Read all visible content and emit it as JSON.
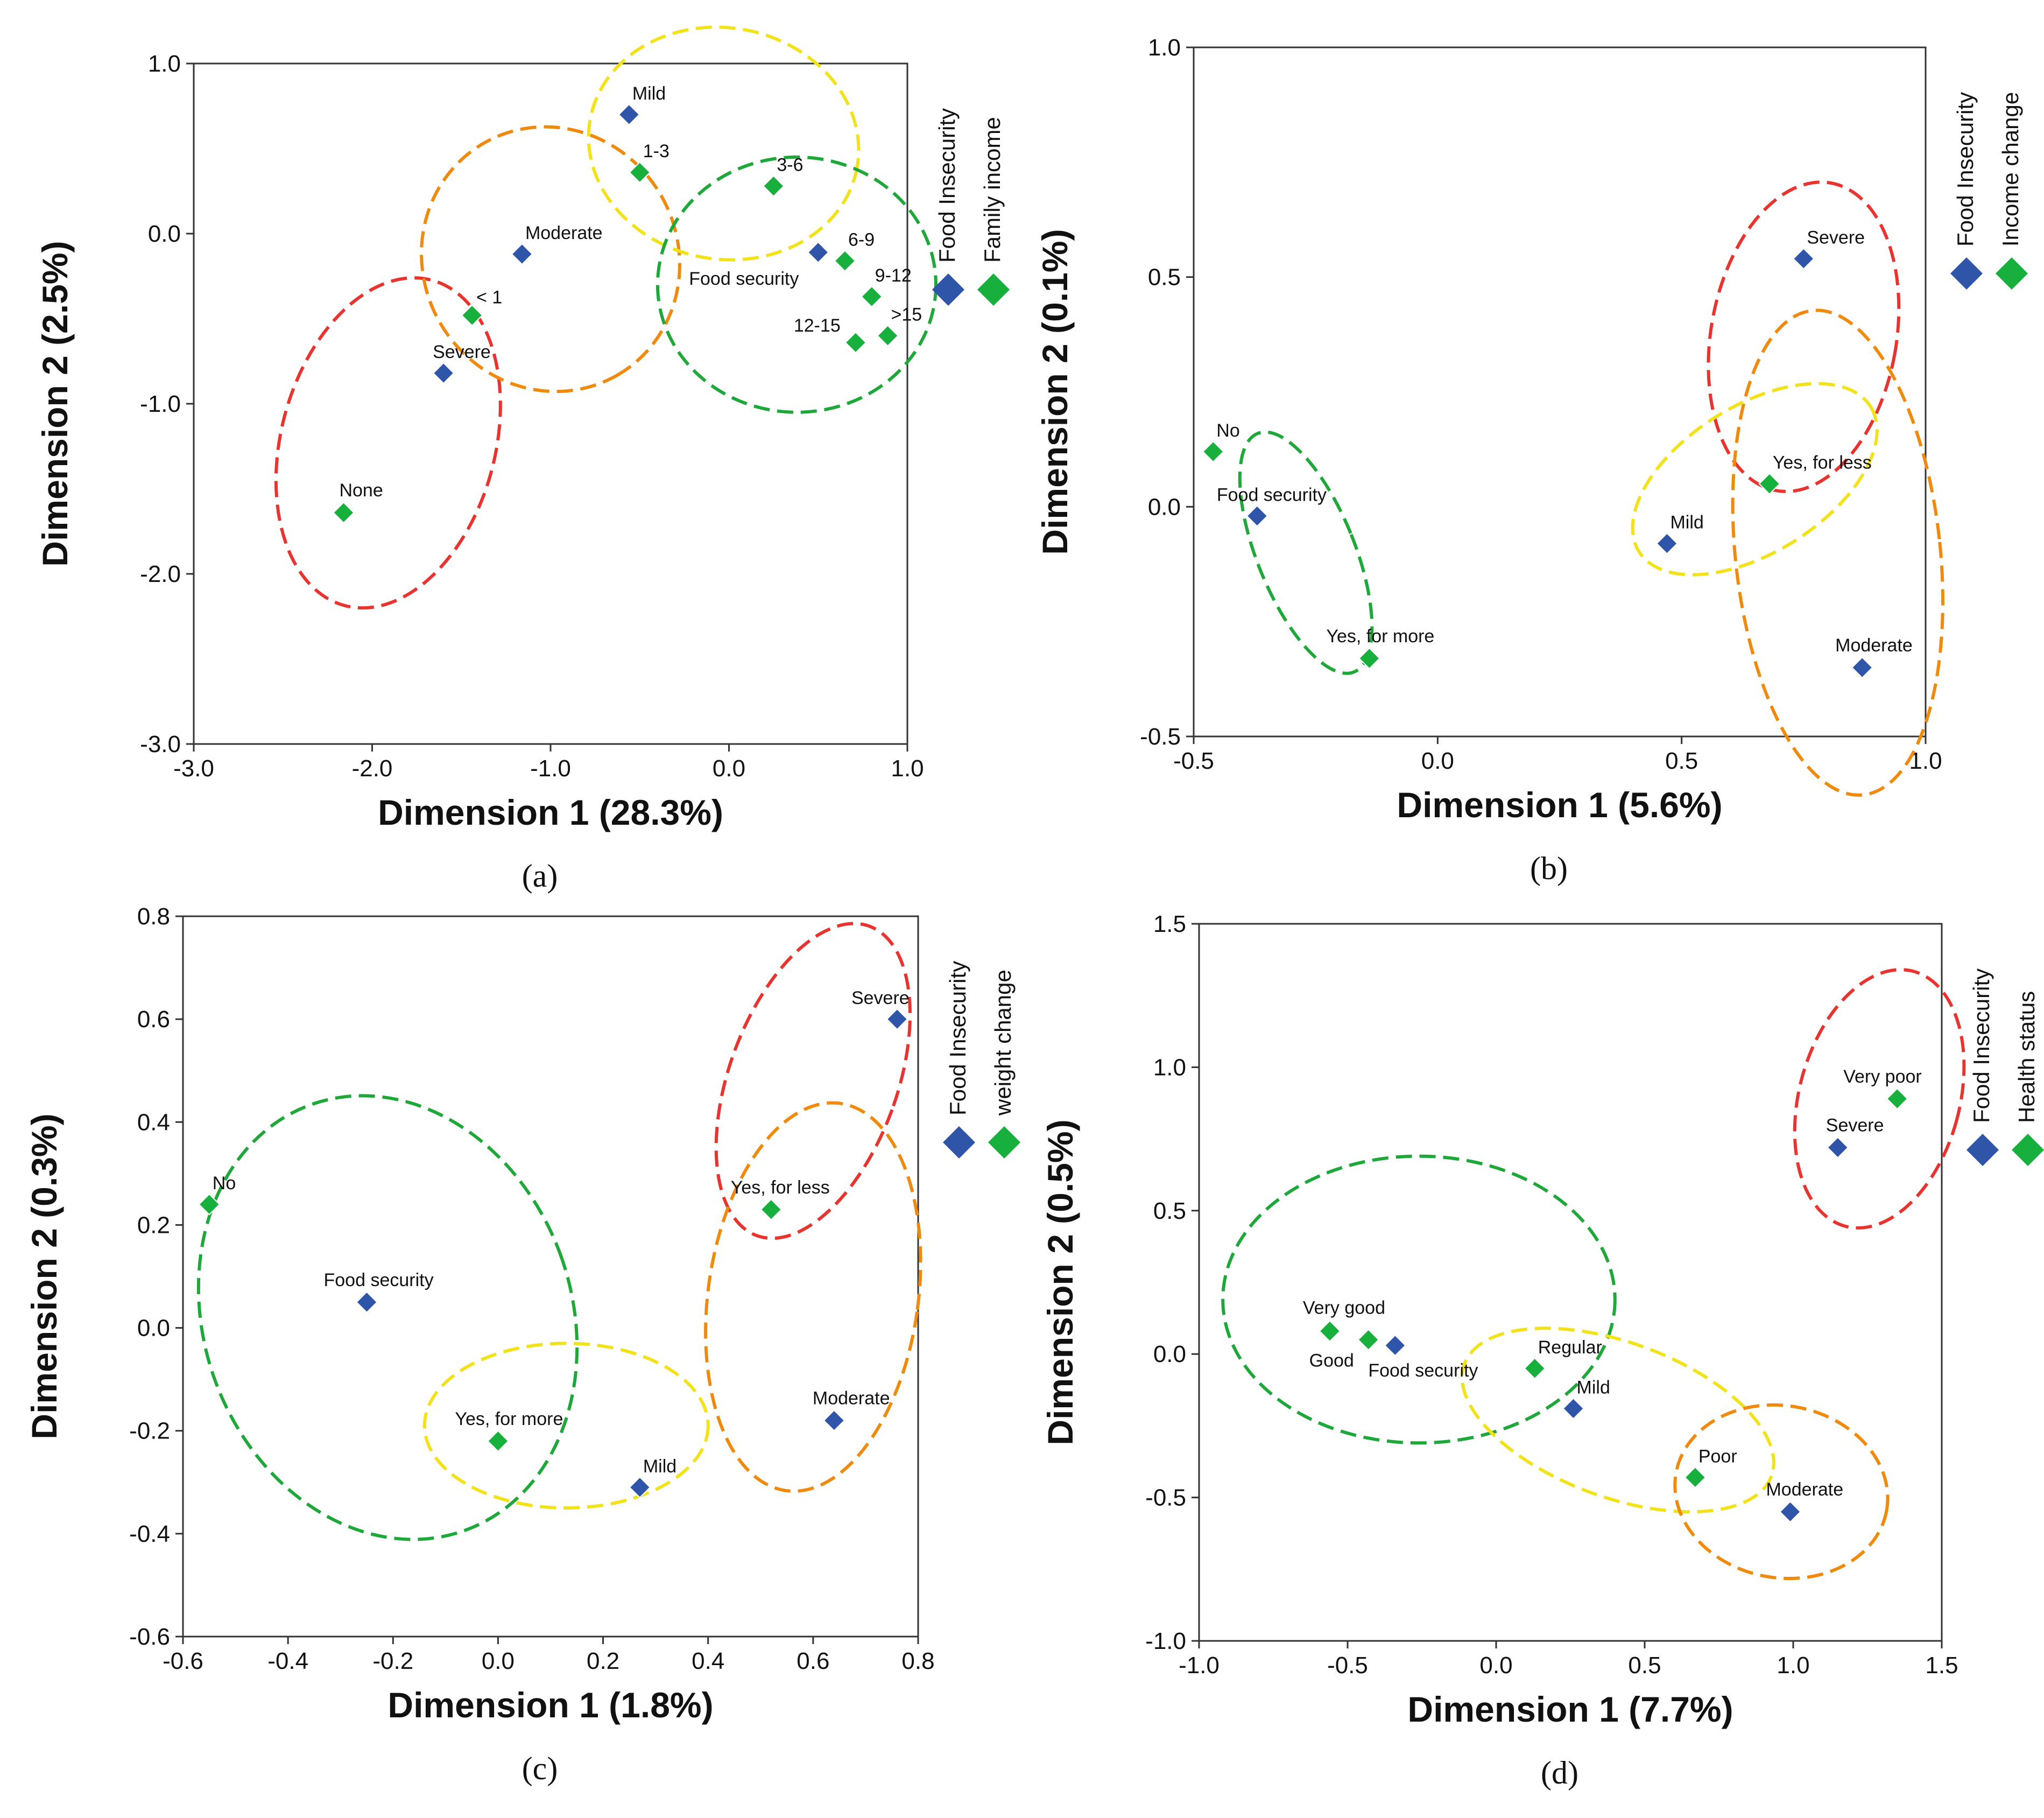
{
  "colors": {
    "food_insecurity": "#2f55a8",
    "other_variable": "#17b03c",
    "red": "#e8332f",
    "orange": "#f08a0c",
    "yellow": "#f2e21a",
    "green": "#1fa83a"
  },
  "chart_data": [
    {
      "type": "scatter",
      "panel": "(a)",
      "xlabel": "Dimension  1 (28.3%)",
      "ylabel": "Dimension  2 (2.5%)",
      "xlim": [
        -3.0,
        1.0
      ],
      "ylim": [
        -3.0,
        1.0
      ],
      "xticks": [
        "-3.0",
        "-2.0",
        "-1.0",
        "0.0",
        "1.0"
      ],
      "yticks": [
        "-3.0",
        "-2.0",
        "-1.0",
        "0.0",
        "1.0"
      ],
      "legend": [
        "Food Insecurity",
        "Family income"
      ],
      "points": [
        {
          "label": "Mild",
          "series": "food_insecurity",
          "x": -0.56,
          "y": 0.7
        },
        {
          "label": "Moderate",
          "series": "food_insecurity",
          "x": -1.16,
          "y": -0.12
        },
        {
          "label": "Severe",
          "series": "food_insecurity",
          "x": -1.6,
          "y": -0.82
        },
        {
          "label": "Food security",
          "series": "food_insecurity",
          "x": 0.5,
          "y": -0.11
        },
        {
          "label": "1-3",
          "series": "other_variable",
          "x": -0.5,
          "y": 0.36
        },
        {
          "label": "3-6",
          "series": "other_variable",
          "x": 0.25,
          "y": 0.28
        },
        {
          "label": "6-9",
          "series": "other_variable",
          "x": 0.65,
          "y": -0.16
        },
        {
          "label": "9-12",
          "series": "other_variable",
          "x": 0.8,
          "y": -0.37
        },
        {
          "label": ">15",
          "series": "other_variable",
          "x": 0.89,
          "y": -0.6
        },
        {
          "label": "12-15",
          "series": "other_variable",
          "x": 0.71,
          "y": -0.64
        },
        {
          "label": "< 1",
          "series": "other_variable",
          "x": -1.44,
          "y": -0.48
        },
        {
          "label": "None",
          "series": "other_variable",
          "x": -2.16,
          "y": -1.64
        }
      ],
      "ellipses": [
        {
          "color": "red",
          "cx": -1.91,
          "cy": -1.23,
          "rx": 0.6,
          "ry": 0.99,
          "angle": 15
        },
        {
          "color": "orange",
          "cx": -1.0,
          "cy": -0.15,
          "rx": 0.75,
          "ry": 0.75,
          "angle": 60
        },
        {
          "color": "yellow",
          "cx": -0.03,
          "cy": 0.53,
          "rx": 0.76,
          "ry": 0.68,
          "angle": 10
        },
        {
          "color": "green",
          "cx": 0.38,
          "cy": -0.3,
          "rx": 0.78,
          "ry": 0.75,
          "angle": 0
        }
      ]
    },
    {
      "type": "scatter",
      "panel": "(b)",
      "xlabel": "Dimension  1 (5.6%)",
      "ylabel": "Dimension  2 (0.1%)",
      "xlim": [
        -0.5,
        1.0
      ],
      "ylim": [
        -0.5,
        1.0
      ],
      "xticks": [
        "-0.5",
        "0.0",
        "0.5",
        "1.0"
      ],
      "yticks": [
        "-0.5",
        "0.0",
        "0.5",
        "1.0"
      ],
      "legend": [
        "Food Insecurity",
        "Income change"
      ],
      "points": [
        {
          "label": "Severe",
          "series": "food_insecurity",
          "x": 0.75,
          "y": 0.54
        },
        {
          "label": "Mild",
          "series": "food_insecurity",
          "x": 0.47,
          "y": -0.08
        },
        {
          "label": "Moderate",
          "series": "food_insecurity",
          "x": 0.87,
          "y": -0.35
        },
        {
          "label": "Food security",
          "series": "food_insecurity",
          "x": -0.37,
          "y": -0.02
        },
        {
          "label": "No",
          "series": "other_variable",
          "x": -0.46,
          "y": 0.12
        },
        {
          "label": "Yes, for less",
          "series": "other_variable",
          "x": 0.68,
          "y": 0.05
        },
        {
          "label": "Yes, for more",
          "series": "other_variable",
          "x": -0.14,
          "y": -0.33
        }
      ],
      "ellipses": [
        {
          "color": "green",
          "cx": -0.27,
          "cy": -0.1,
          "rx": 0.1,
          "ry": 0.28,
          "angle": -22
        },
        {
          "color": "red",
          "cx": 0.75,
          "cy": 0.37,
          "rx": 0.19,
          "ry": 0.34,
          "angle": 10
        },
        {
          "color": "orange",
          "cx": 0.82,
          "cy": -0.1,
          "rx": 0.21,
          "ry": 0.53,
          "angle": -6
        },
        {
          "color": "yellow",
          "cx": 0.65,
          "cy": 0.06,
          "rx": 0.28,
          "ry": 0.16,
          "angle": -32
        }
      ]
    },
    {
      "type": "scatter",
      "panel": "(c)",
      "xlabel": "Dimension  1 (1.8%)",
      "ylabel": "Dimension  2 (0.3%)",
      "xlim": [
        -0.6,
        0.8
      ],
      "ylim": [
        -0.6,
        0.8
      ],
      "xticks": [
        "-0.6",
        "-0.4",
        "-0.2",
        "0.0",
        "0.2",
        "0.4",
        "0.6",
        "0.8"
      ],
      "yticks": [
        "-0.6",
        "-0.4",
        "-0.2",
        "0.0",
        "0.2",
        "0.4",
        "0.6",
        "0.8"
      ],
      "legend": [
        "Food Insecurity",
        "weight change"
      ],
      "points": [
        {
          "label": "Severe",
          "series": "food_insecurity",
          "x": 0.76,
          "y": 0.6
        },
        {
          "label": "Food security",
          "series": "food_insecurity",
          "x": -0.25,
          "y": 0.05
        },
        {
          "label": "Moderate",
          "series": "food_insecurity",
          "x": 0.64,
          "y": -0.18
        },
        {
          "label": "Mild",
          "series": "food_insecurity",
          "x": 0.27,
          "y": -0.31
        },
        {
          "label": "No",
          "series": "other_variable",
          "x": -0.55,
          "y": 0.24
        },
        {
          "label": "Yes, for less",
          "series": "other_variable",
          "x": 0.52,
          "y": 0.23
        },
        {
          "label": "Yes, for more",
          "series": "other_variable",
          "x": 0.0,
          "y": -0.22
        }
      ],
      "ellipses": [
        {
          "color": "green",
          "cx": -0.21,
          "cy": 0.02,
          "rx": 0.35,
          "ry": 0.44,
          "angle": -20
        },
        {
          "color": "yellow",
          "cx": 0.13,
          "cy": -0.19,
          "rx": 0.27,
          "ry": 0.16,
          "angle": 0
        },
        {
          "color": "red",
          "cx": 0.6,
          "cy": 0.48,
          "rx": 0.16,
          "ry": 0.32,
          "angle": 20
        },
        {
          "color": "orange",
          "cx": 0.6,
          "cy": 0.06,
          "rx": 0.2,
          "ry": 0.38,
          "angle": 8
        }
      ]
    },
    {
      "type": "scatter",
      "panel": "(d)",
      "xlabel": "Dimension  1 (7.7%)",
      "ylabel": "Dimension  2 (0.5%)",
      "xlim": [
        -1.0,
        1.5
      ],
      "ylim": [
        -1.0,
        1.5
      ],
      "xticks": [
        "-1.0",
        "-0.5",
        "0.0",
        "0.5",
        "1.0",
        "1.5"
      ],
      "yticks": [
        "-1.0",
        "-0.5",
        "0.0",
        "0.5",
        "1.0",
        "1.5"
      ],
      "legend": [
        "Food Insecurity",
        "Health status"
      ],
      "points": [
        {
          "label": "Severe",
          "series": "food_insecurity",
          "x": 1.15,
          "y": 0.72
        },
        {
          "label": "Food security",
          "series": "food_insecurity",
          "x": -0.34,
          "y": 0.03
        },
        {
          "label": "Mild",
          "series": "food_insecurity",
          "x": 0.26,
          "y": -0.19
        },
        {
          "label": "Moderate",
          "series": "food_insecurity",
          "x": 0.99,
          "y": -0.55
        },
        {
          "label": "Very poor",
          "series": "other_variable",
          "x": 1.35,
          "y": 0.89
        },
        {
          "label": "Very good",
          "series": "other_variable",
          "x": -0.56,
          "y": 0.08
        },
        {
          "label": "Good",
          "series": "other_variable",
          "x": -0.43,
          "y": 0.05
        },
        {
          "label": "Regular",
          "series": "other_variable",
          "x": 0.13,
          "y": -0.05
        },
        {
          "label": "Poor",
          "series": "other_variable",
          "x": 0.67,
          "y": -0.43
        }
      ],
      "ellipses": [
        {
          "color": "red",
          "cx": 1.29,
          "cy": 0.89,
          "rx": 0.27,
          "ry": 0.46,
          "angle": 15
        },
        {
          "color": "green",
          "cx": -0.26,
          "cy": 0.19,
          "rx": 0.66,
          "ry": 0.5,
          "angle": 0
        },
        {
          "color": "yellow",
          "cx": 0.41,
          "cy": -0.23,
          "rx": 0.55,
          "ry": 0.27,
          "angle": 20
        },
        {
          "color": "orange",
          "cx": 0.96,
          "cy": -0.48,
          "rx": 0.36,
          "ry": 0.3,
          "angle": 10
        }
      ]
    }
  ]
}
